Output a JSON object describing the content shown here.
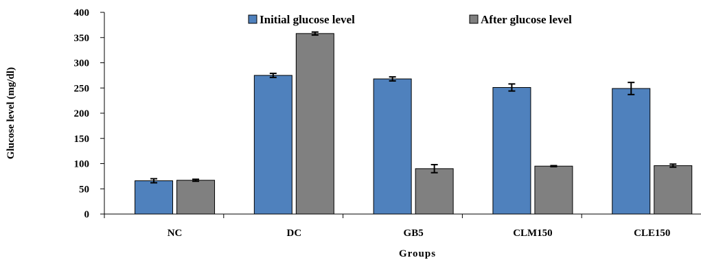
{
  "chart_data": {
    "type": "bar",
    "xlabel": "Groups",
    "ylabel": "Glucose level (mg/dl)",
    "ylim": [
      0,
      400
    ],
    "yticks": [
      0,
      50,
      100,
      150,
      200,
      250,
      300,
      350,
      400
    ],
    "categories": [
      "NC",
      "DC",
      "GB5",
      "CLM150",
      "CLE150"
    ],
    "series": [
      {
        "name": "Initial glucose level",
        "color": "#4F81BD",
        "values": [
          66,
          275,
          268,
          251,
          249
        ],
        "errors": [
          4,
          4,
          4,
          7,
          12
        ]
      },
      {
        "name": "After glucose level",
        "color": "#808080",
        "values": [
          67,
          358,
          90,
          95,
          96
        ],
        "errors": [
          2,
          3,
          8,
          1,
          3
        ]
      }
    ],
    "legend_position": "top",
    "grid": false
  }
}
